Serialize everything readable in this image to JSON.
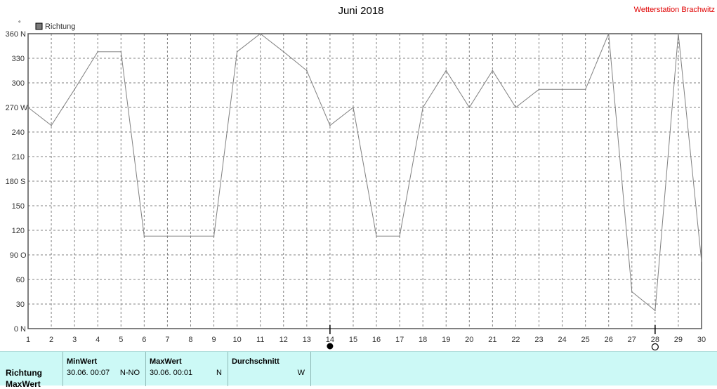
{
  "header": {
    "title": "Juni 2018",
    "station": "Wetterstation Brachwitz",
    "unit_symbol": "°"
  },
  "chart_data": {
    "type": "line",
    "title": "Juni 2018",
    "legend": {
      "label": "Richtung",
      "placement": "top-left"
    },
    "x": [
      1,
      2,
      3,
      4,
      5,
      6,
      7,
      8,
      9,
      10,
      11,
      12,
      13,
      14,
      15,
      16,
      17,
      18,
      19,
      20,
      21,
      22,
      23,
      24,
      25,
      26,
      27,
      28,
      29,
      30
    ],
    "xlim": [
      1,
      30
    ],
    "ylim": [
      0,
      360
    ],
    "y_ticks": [
      {
        "v": 0,
        "label": "0",
        "dir": "N"
      },
      {
        "v": 30,
        "label": "30",
        "dir": ""
      },
      {
        "v": 60,
        "label": "60",
        "dir": ""
      },
      {
        "v": 90,
        "label": "90",
        "dir": "O"
      },
      {
        "v": 120,
        "label": "120",
        "dir": ""
      },
      {
        "v": 150,
        "label": "150",
        "dir": ""
      },
      {
        "v": 180,
        "label": "180",
        "dir": "S"
      },
      {
        "v": 210,
        "label": "210",
        "dir": ""
      },
      {
        "v": 240,
        "label": "240",
        "dir": ""
      },
      {
        "v": 270,
        "label": "270",
        "dir": "W"
      },
      {
        "v": 300,
        "label": "300",
        "dir": ""
      },
      {
        "v": 330,
        "label": "330",
        "dir": ""
      },
      {
        "v": 360,
        "label": "360",
        "dir": "N"
      }
    ],
    "series": [
      {
        "name": "Richtung",
        "color": "#808080",
        "points": [
          [
            1,
            270
          ],
          [
            2,
            248
          ],
          [
            3,
            292
          ],
          [
            4,
            338
          ],
          [
            5,
            338
          ],
          [
            6,
            113
          ],
          [
            7,
            113
          ],
          [
            8,
            113
          ],
          [
            9,
            113
          ],
          [
            10,
            338
          ],
          [
            11,
            360
          ],
          [
            12,
            338
          ],
          [
            13,
            315
          ],
          [
            14,
            248
          ],
          [
            15,
            270
          ],
          [
            16,
            113
          ],
          [
            17,
            113
          ],
          [
            18,
            270
          ],
          [
            19,
            315
          ],
          [
            20,
            270
          ],
          [
            21,
            315
          ],
          [
            22,
            270
          ],
          [
            23,
            292
          ],
          [
            24,
            292
          ],
          [
            25,
            292
          ],
          [
            26,
            360
          ],
          [
            27,
            45
          ],
          [
            28,
            22
          ],
          [
            29,
            360
          ],
          [
            30,
            82
          ]
        ]
      }
    ],
    "moon_phases": [
      {
        "day": 14,
        "phase": "new-moon"
      },
      {
        "day": 28,
        "phase": "full-moon"
      }
    ],
    "grid": true,
    "grid_color": "#808080"
  },
  "stats": {
    "row_label": "Richtung",
    "row_label_2": "MaxWert",
    "min": {
      "header": "MinWert",
      "date": "30.06.  00:07",
      "dir": "N-NO"
    },
    "max": {
      "header": "MaxWert",
      "date": "30.06.  00:01",
      "dir": "N"
    },
    "avg": {
      "header": "Durchschnitt",
      "date": "",
      "dir": "W"
    }
  }
}
